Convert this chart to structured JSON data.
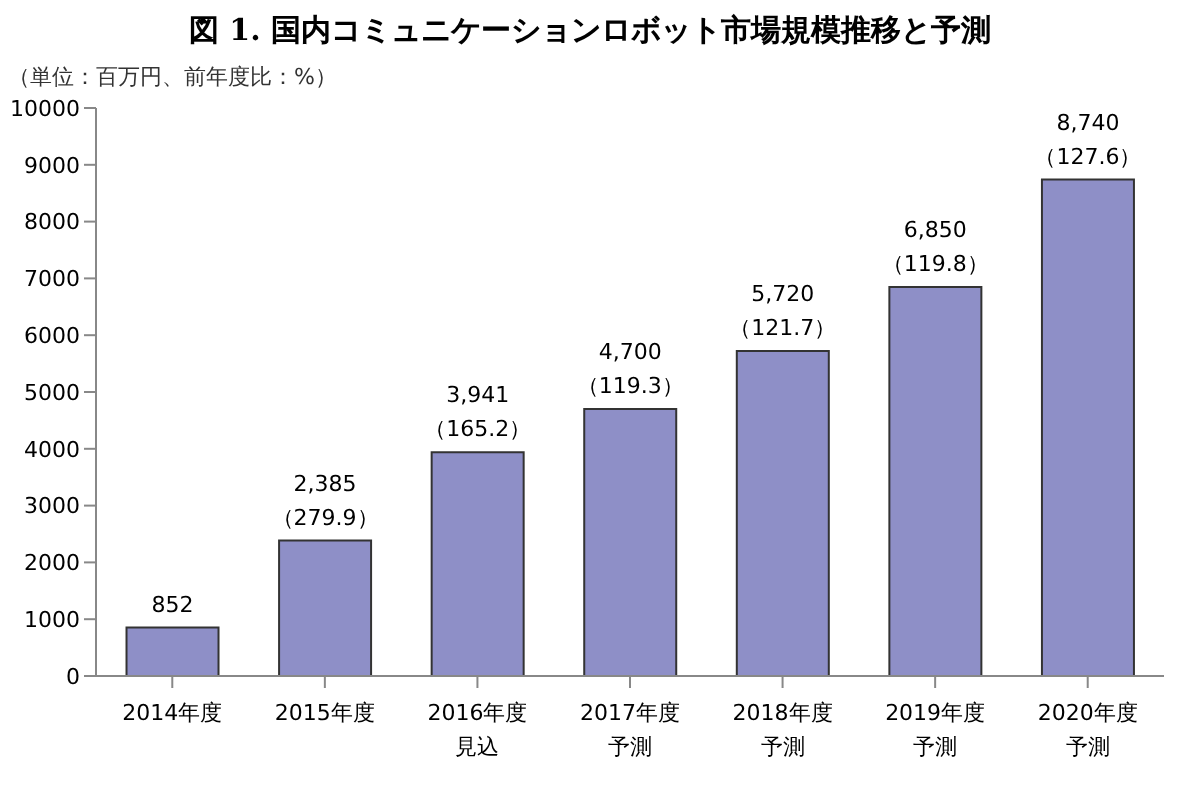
{
  "chart_data": {
    "type": "bar",
    "title": "図 1. 国内コミュニケーションロボット市場規模推移と予測",
    "subtitle": "（単位：百万円、前年度比：%）",
    "categories": [
      "2014年度",
      "2015年度",
      "2016年度見込",
      "2017年度予測",
      "2018年度予測",
      "2019年度予測",
      "2020年度予測"
    ],
    "values": [
      852,
      2385,
      3941,
      4700,
      5720,
      6850,
      8740
    ],
    "value_labels": [
      "852",
      "2,385\n（279.9）",
      "3,941\n（165.2）",
      "4,700\n（119.3）",
      "5,720\n（121.7）",
      "6,850\n（119.8）",
      "8,740\n（127.6）"
    ],
    "color": "#8e8fc7",
    "ylim": [
      0,
      10000
    ],
    "yticks": [
      0,
      1000,
      2000,
      3000,
      4000,
      5000,
      6000,
      7000,
      8000,
      9000,
      10000
    ],
    "grid": false,
    "legend": false
  }
}
